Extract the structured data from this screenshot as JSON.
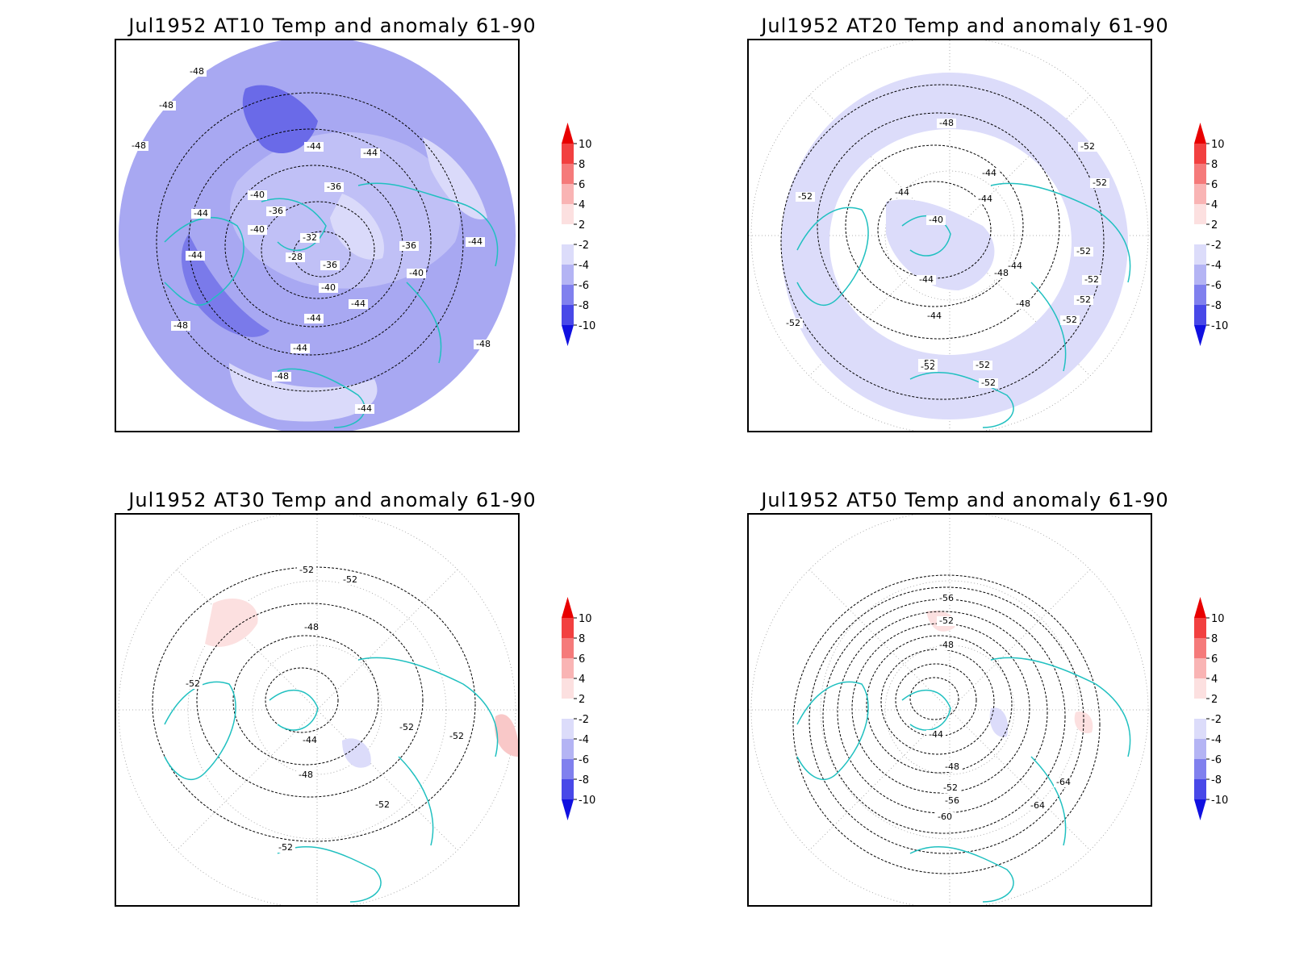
{
  "panels": [
    {
      "title": "Jul1952 AT10 Temp and anomaly 61-90",
      "contour_labels": [
        "-48",
        "-48",
        "-48",
        "-44",
        "-44",
        "-44",
        "-40",
        "-36",
        "-36",
        "-32",
        "-28",
        "-36",
        "-40",
        "-44",
        "-44",
        "-40",
        "-44",
        "-48",
        "-44",
        "-48",
        "-48",
        "-44",
        "-36",
        "-40",
        "-44"
      ]
    },
    {
      "title": "Jul1952 AT20 Temp and anomaly 61-90",
      "contour_labels": [
        "-48",
        "-44",
        "-44",
        "-40",
        "-44",
        "-52",
        "-52",
        "-52",
        "-52",
        "-44",
        "-48",
        "-44",
        "-52",
        "-52",
        "-48",
        "-44",
        "-52",
        "-52",
        "-52",
        "-52",
        "-52",
        "-52"
      ]
    },
    {
      "title": "Jul1952 AT30 Temp and anomaly 61-90",
      "contour_labels": [
        "-52",
        "-52",
        "-48",
        "-52",
        "-44",
        "-48",
        "-52",
        "-52",
        "-52",
        "-52"
      ]
    },
    {
      "title": "Jul1952 AT50 Temp and anomaly 61-90",
      "contour_labels": [
        "-56",
        "-52",
        "-48",
        "-44",
        "-48",
        "-52",
        "-56",
        "-60",
        "-64",
        "-64"
      ]
    }
  ],
  "colorbar": {
    "labels": [
      "10",
      "8",
      "6",
      "4",
      "2",
      "-2",
      "-4",
      "-6",
      "-8",
      "-10"
    ],
    "colors": [
      "#e80000",
      "#f24040",
      "#f57a7a",
      "#f9b4b4",
      "#fce0e0",
      "#ffffff",
      "#dcdcfa",
      "#b4b4f4",
      "#8080ee",
      "#4848e8",
      "#1010e0"
    ]
  },
  "colors": {
    "coastline": "#20c0c0",
    "contour": "#000000",
    "grid": "#999999"
  }
}
